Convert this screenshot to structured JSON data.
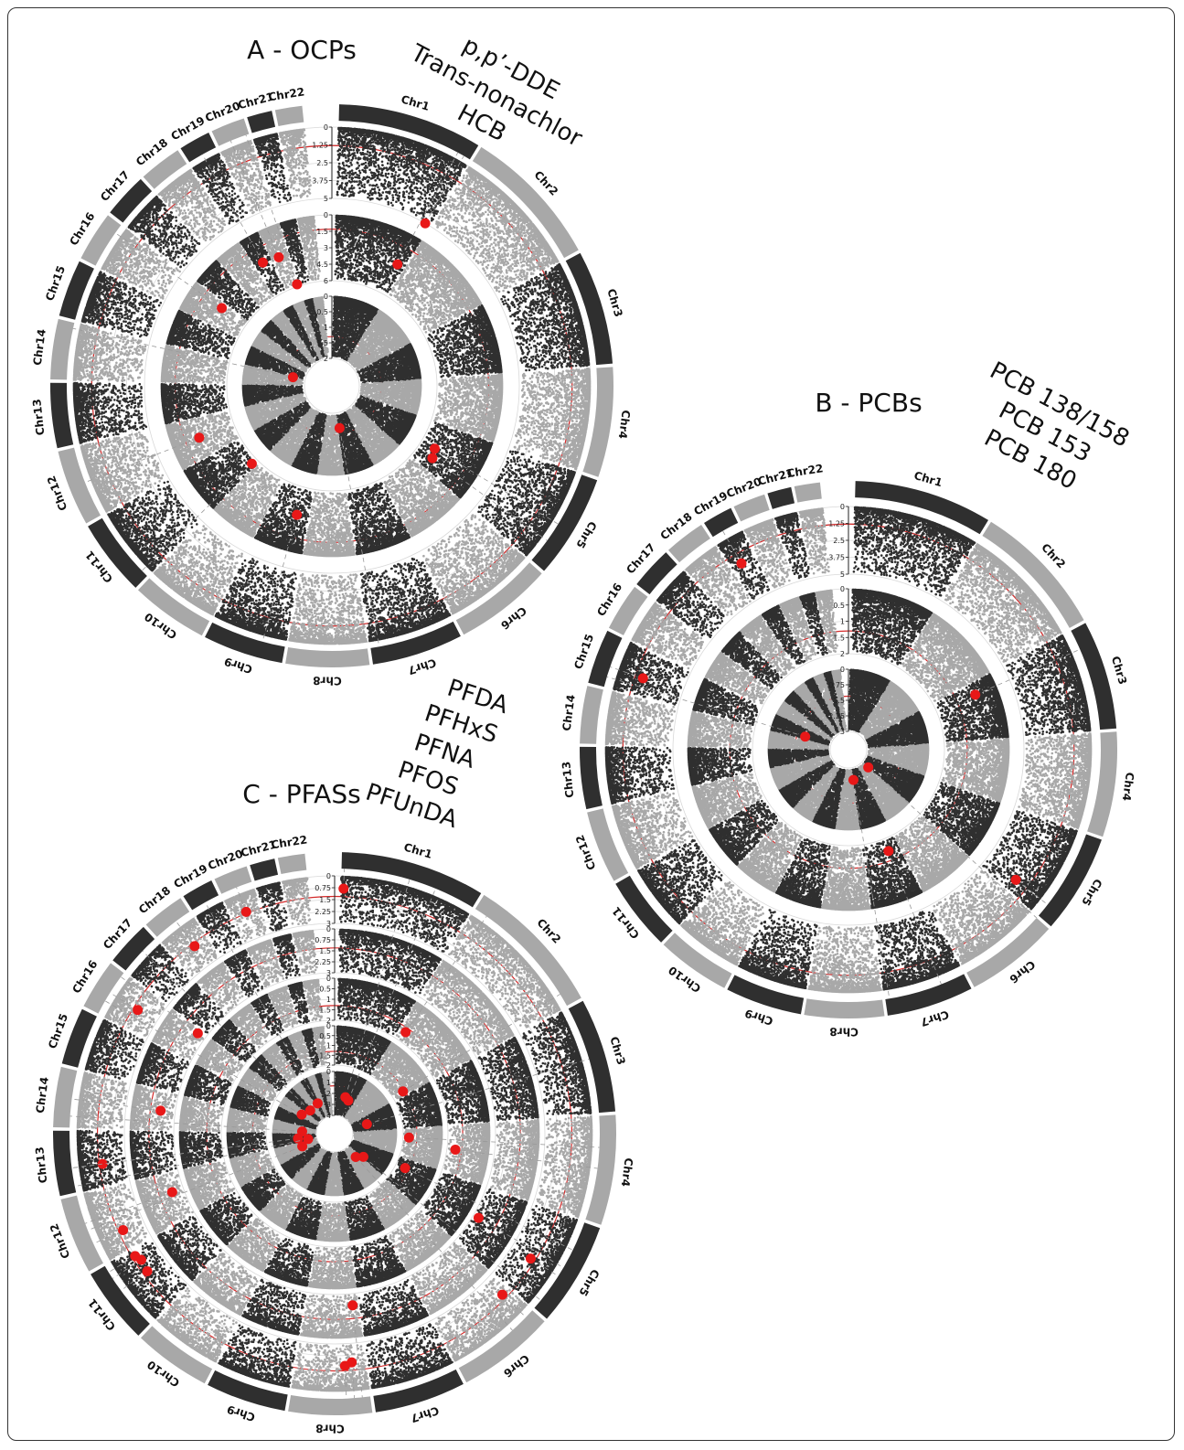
{
  "chart_data": [
    {
      "type": "scatter",
      "title": "A - OCPs",
      "compounds": [
        "p,p’-DDE",
        "Trans-nonachlor",
        "HCB"
      ],
      "chromosomes": [
        "Chr1",
        "Chr2",
        "Chr3",
        "Chr4",
        "Chr5",
        "Chr6",
        "Chr7",
        "Chr8",
        "Chr9",
        "Chr10",
        "Chr11",
        "Chr12",
        "Chr13",
        "Chr14",
        "Chr15",
        "Chr16",
        "Chr17",
        "Chr18",
        "Chr19",
        "Chr20",
        "Chr21",
        "Chr22"
      ],
      "tracks": [
        {
          "ticks": [
            "0",
            "1.25",
            "2.5",
            "3.75",
            "5"
          ],
          "ylim": [
            0,
            5
          ],
          "threshold": 1.3,
          "hits": [
            {
              "chr": "Chr1",
              "pos": 0.95,
              "value": 5.0
            }
          ]
        },
        {
          "ticks": [
            "0",
            "1.5",
            "3",
            "4.5",
            "6"
          ],
          "ylim": [
            0,
            6
          ],
          "threshold": 1.3,
          "hits": [
            {
              "chr": "Chr1",
              "pos": 0.9,
              "value": 3.0
            },
            {
              "chr": "Chr5",
              "pos": 0.55,
              "value": 4.6
            },
            {
              "chr": "Chr12",
              "pos": 0.5,
              "value": 2.6
            },
            {
              "chr": "Chr19",
              "pos": 0.5,
              "value": 2.7
            },
            {
              "chr": "Chr20",
              "pos": 0.4,
              "value": 2.9
            },
            {
              "chr": "Chr16",
              "pos": 0.8,
              "value": 3.3
            },
            {
              "chr": "Chr20",
              "pos": 0.9,
              "value": 5.8
            },
            {
              "chr": "Chr9",
              "pos": 0.3,
              "value": 3.4
            },
            {
              "chr": "Chr11",
              "pos": 0.1,
              "value": 5.4
            },
            {
              "chr": "Chr5",
              "pos": 0.75,
              "value": 4.3
            }
          ]
        },
        {
          "ticks": [
            "0",
            "0.5",
            "1",
            "1.5",
            "2"
          ],
          "ylim": [
            0,
            2
          ],
          "threshold": 1.3,
          "hits": [
            {
              "chr": "Chr14",
              "pos": 0.9,
              "value": 1.6
            },
            {
              "chr": "Chr7",
              "pos": 0.9,
              "value": 1.5
            }
          ]
        }
      ]
    },
    {
      "type": "scatter",
      "title": "B - PCBs",
      "compounds": [
        "PCB 138/158",
        "PCB 153",
        "PCB 180"
      ],
      "chromosomes": [
        "Chr1",
        "Chr2",
        "Chr3",
        "Chr4",
        "Chr5",
        "Chr6",
        "Chr7",
        "Chr8",
        "Chr9",
        "Chr10",
        "Chr11",
        "Chr12",
        "Chr13",
        "Chr14",
        "Chr15",
        "Chr16",
        "Chr17",
        "Chr18",
        "Chr19",
        "Chr20",
        "Chr21",
        "Chr22"
      ],
      "tracks": [
        {
          "ticks": [
            "0",
            "1.25",
            "2.5",
            "3.75",
            "5"
          ],
          "ylim": [
            0,
            5
          ],
          "threshold": 1.3,
          "hits": [
            {
              "chr": "Chr19",
              "pos": 0.4,
              "value": 2.1
            },
            {
              "chr": "Chr15",
              "pos": 0.4,
              "value": 1.9
            },
            {
              "chr": "Chr5",
              "pos": 0.85,
              "value": 2.3
            }
          ]
        },
        {
          "ticks": [
            "0",
            "0.5",
            "1",
            "1.5",
            "2"
          ],
          "ylim": [
            0,
            2
          ],
          "threshold": 1.3,
          "hits": [
            {
              "chr": "Chr3",
              "pos": 0.2,
              "value": 0.7
            },
            {
              "chr": "Chr7",
              "pos": 0.3,
              "value": 1.6
            }
          ]
        },
        {
          "ticks": [
            "0",
            "0.75",
            "1.5",
            "2.25",
            "3"
          ],
          "ylim": [
            0,
            3
          ],
          "threshold": 1.3,
          "hits": [
            {
              "chr": "Chr6",
              "pos": 0.0,
              "value": 2.6
            },
            {
              "chr": "Chr7",
              "pos": 0.95,
              "value": 2.4
            },
            {
              "chr": "Chr15",
              "pos": 0.2,
              "value": 1.7
            }
          ]
        }
      ]
    },
    {
      "type": "scatter",
      "title": "C - PFASs",
      "compounds": [
        "PFDA",
        "PFHxS",
        "PFNA",
        "PFOS",
        "PFUnDA"
      ],
      "chromosomes": [
        "Chr1",
        "Chr2",
        "Chr3",
        "Chr4",
        "Chr5",
        "Chr6",
        "Chr7",
        "Chr8",
        "Chr9",
        "Chr10",
        "Chr11",
        "Chr12",
        "Chr13",
        "Chr14",
        "Chr15",
        "Chr16",
        "Chr17",
        "Chr18",
        "Chr19",
        "Chr20",
        "Chr21",
        "Chr22"
      ],
      "tracks": [
        {
          "ticks": [
            "0",
            "0.75",
            "1.5",
            "2.25",
            "3"
          ],
          "ylim": [
            0,
            3
          ],
          "threshold": 1.3,
          "hits": [
            {
              "chr": "Chr1",
              "pos": 0.02,
              "value": 0.8
            },
            {
              "chr": "Chr20",
              "pos": 0.5,
              "value": 1.2
            },
            {
              "chr": "Chr18",
              "pos": 0.6,
              "value": 1.5
            },
            {
              "chr": "Chr16",
              "pos": 0.5,
              "value": 1.6
            },
            {
              "chr": "Chr13",
              "pos": 0.4,
              "value": 1.5
            },
            {
              "chr": "Chr12",
              "pos": 0.3,
              "value": 1.6
            },
            {
              "chr": "Chr11",
              "pos": 0.6,
              "value": 1.6
            },
            {
              "chr": "Chr11",
              "pos": 0.8,
              "value": 1.7
            },
            {
              "chr": "Chr11",
              "pos": 0.9,
              "value": 1.5
            },
            {
              "chr": "Chr5",
              "pos": 0.6,
              "value": 1.6
            },
            {
              "chr": "Chr6",
              "pos": 0.1,
              "value": 1.6
            },
            {
              "chr": "Chr8",
              "pos": 0.2,
              "value": 1.8
            },
            {
              "chr": "Chr8",
              "pos": 0.3,
              "value": 1.6
            }
          ]
        },
        {
          "ticks": [
            "0",
            "0.75",
            "1.5",
            "2.25",
            "3"
          ],
          "ylim": [
            0,
            3
          ],
          "threshold": 1.3,
          "hits": [
            {
              "chr": "Chr16",
              "pos": 0.9,
              "value": 2.4
            },
            {
              "chr": "Chr14",
              "pos": 0.5,
              "value": 2.0
            },
            {
              "chr": "Chr12",
              "pos": 0.6,
              "value": 2.2
            },
            {
              "chr": "Chr5",
              "pos": 0.5,
              "value": 2.6
            },
            {
              "chr": "Chr8",
              "pos": 0.1,
              "value": 2.2
            }
          ]
        },
        {
          "ticks": [
            "0",
            "0.5",
            "1",
            "1.5",
            "2"
          ],
          "ylim": [
            0,
            2
          ],
          "threshold": 1.3,
          "hits": [
            {
              "chr": "Chr2",
              "pos": 0.1,
              "value": 1.5
            },
            {
              "chr": "Chr4",
              "pos": 0.5,
              "value": 1.6
            }
          ]
        },
        {
          "ticks": [
            "0",
            "0.5",
            "1",
            "1.5",
            "2"
          ],
          "ylim": [
            0,
            2
          ],
          "threshold": 1.3,
          "hits": [
            {
              "chr": "Chr2",
              "pos": 0.9,
              "value": 1.4
            },
            {
              "chr": "Chr4",
              "pos": 0.3,
              "value": 1.7
            },
            {
              "chr": "Chr5",
              "pos": 0.3,
              "value": 1.5
            }
          ]
        },
        {
          "ticks": [
            "0",
            "1",
            "2",
            "3",
            "4"
          ],
          "ylim": [
            0,
            4
          ],
          "threshold": 1.3,
          "hits": [
            {
              "chr": "Chr1",
              "pos": 0.5,
              "value": 2.2
            },
            {
              "chr": "Chr1",
              "pos": 0.7,
              "value": 2.4
            },
            {
              "chr": "Chr19",
              "pos": 0.5,
              "value": 2.5
            },
            {
              "chr": "Chr17",
              "pos": 0.6,
              "value": 2.6
            },
            {
              "chr": "Chr16",
              "pos": 0.3,
              "value": 2.2
            },
            {
              "chr": "Chr14",
              "pos": 0.2,
              "value": 2.7
            },
            {
              "chr": "Chr12",
              "pos": 0.5,
              "value": 2.5
            },
            {
              "chr": "Chr13",
              "pos": 0.4,
              "value": 2.3
            },
            {
              "chr": "Chr3",
              "pos": 0.5,
              "value": 2.6
            },
            {
              "chr": "Chr6",
              "pos": 0.3,
              "value": 2.8
            },
            {
              "chr": "Chr13",
              "pos": 0.1,
              "value": 3.2
            },
            {
              "chr": "Chr5",
              "pos": 0.9,
              "value": 2.3
            }
          ]
        }
      ]
    }
  ],
  "colors": {
    "dark": "#2f2f2f",
    "light": "#a8a8a8",
    "hit": "#e81818",
    "threshold": "#d42a2a",
    "grid": "#d8d8d8"
  }
}
